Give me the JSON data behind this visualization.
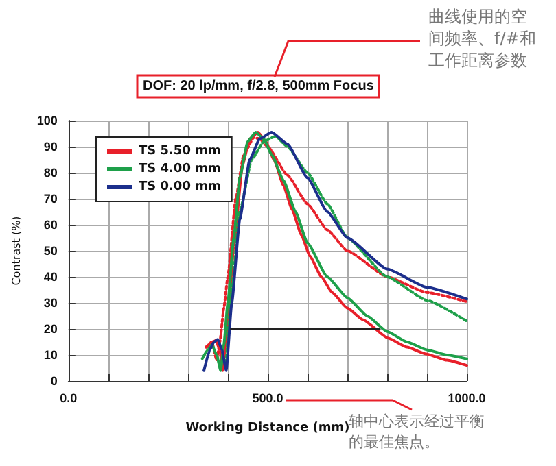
{
  "chart_data": {
    "type": "line",
    "title": "DOF: 20 lp/mm, f/2.8, 500mm Focus",
    "xlabel": "Working Distance (mm)",
    "ylabel": "Contrast (%)",
    "annotations": [
      "曲线使用的空间频率、f/#和工作距离参数",
      "轴中心表示经过平衡的最佳焦点。"
    ],
    "xlim": [
      0,
      1000
    ],
    "ylim": [
      0,
      100
    ],
    "xticks": [
      {
        "value": 0,
        "label": "0.0"
      },
      {
        "value": 100,
        "label": null
      },
      {
        "value": 200,
        "label": null
      },
      {
        "value": 300,
        "label": null
      },
      {
        "value": 400,
        "label": null
      },
      {
        "value": 500,
        "label": "500.0"
      },
      {
        "value": 600,
        "label": null
      },
      {
        "value": 700,
        "label": null
      },
      {
        "value": 800,
        "label": null
      },
      {
        "value": 900,
        "label": null
      },
      {
        "value": 1000,
        "label": "1000.0"
      }
    ],
    "yticks": [
      0,
      10,
      20,
      30,
      40,
      50,
      60,
      70,
      80,
      90,
      100
    ],
    "grid": true,
    "legend": "top left",
    "marker": "none",
    "series": [
      {
        "name": "TS 5.50 mm",
        "color": "#e8202a",
        "line_style": "solid",
        "x": [
          347,
          360,
          370,
          380,
          387,
          395,
          403,
          415,
          437,
          455,
          476,
          495,
          516,
          540,
          561,
          585,
          606,
          635,
          662,
          700,
          740,
          802,
          850,
          898,
          950,
          1000
        ],
        "values": [
          13,
          15,
          15.5,
          12,
          4,
          15,
          30,
          52,
          83,
          93,
          95.5,
          92,
          85,
          75,
          66,
          56,
          48,
          40,
          34,
          28,
          23.5,
          16.5,
          13,
          10.4,
          8,
          6
        ]
      },
      {
        "color": "#e8202a",
        "line_style": "dotted",
        "x": [
          345,
          360,
          372,
          380,
          390,
          400,
          420,
          440,
          465,
          480,
          500,
          550,
          600,
          650,
          700,
          800,
          900,
          1000
        ],
        "values": [
          13,
          15,
          8,
          15,
          28,
          40,
          70,
          87,
          93.5,
          93,
          90,
          79,
          68,
          58,
          50,
          40,
          34,
          30.5
        ]
      },
      {
        "name": "TS 4.00 mm",
        "color": "#1ea04a",
        "line_style": "solid",
        "x": [
          336,
          350,
          360,
          372,
          382,
          390,
          400,
          415,
          430,
          450,
          470,
          490,
          510,
          540,
          570,
          600,
          650,
          700,
          750,
          800,
          850,
          900,
          950,
          1000
        ],
        "values": [
          8.6,
          12,
          14,
          10,
          4,
          14,
          30,
          55,
          78,
          92,
          95.5,
          93,
          87,
          77,
          65,
          53,
          40,
          32,
          25,
          19,
          15,
          12,
          10,
          8.5
        ]
      },
      {
        "color": "#1ea04a",
        "line_style": "dotted",
        "x": [
          395,
          410,
          430,
          460,
          490,
          520,
          550,
          600,
          650,
          700,
          800,
          900,
          1000
        ],
        "values": [
          5,
          35,
          65,
          85,
          92,
          94,
          90,
          80,
          68,
          55,
          40,
          31,
          23
        ]
      },
      {
        "name": "TS 0.00 mm",
        "color": "#1c2f8c",
        "line_style": "solid",
        "x": [
          340,
          355,
          365,
          375,
          385,
          396,
          410,
          430,
          455,
          480,
          510,
          550,
          600,
          650,
          700,
          800,
          900,
          1000
        ],
        "values": [
          4,
          12,
          15,
          16,
          12,
          4,
          30,
          62,
          85,
          93,
          95.5,
          91,
          78,
          65,
          55,
          43,
          36,
          31.5
        ]
      },
      {
        "color": "#222222",
        "line_style": "solid",
        "x": [
          409,
          780
        ],
        "values": [
          20,
          20
        ]
      }
    ]
  }
}
